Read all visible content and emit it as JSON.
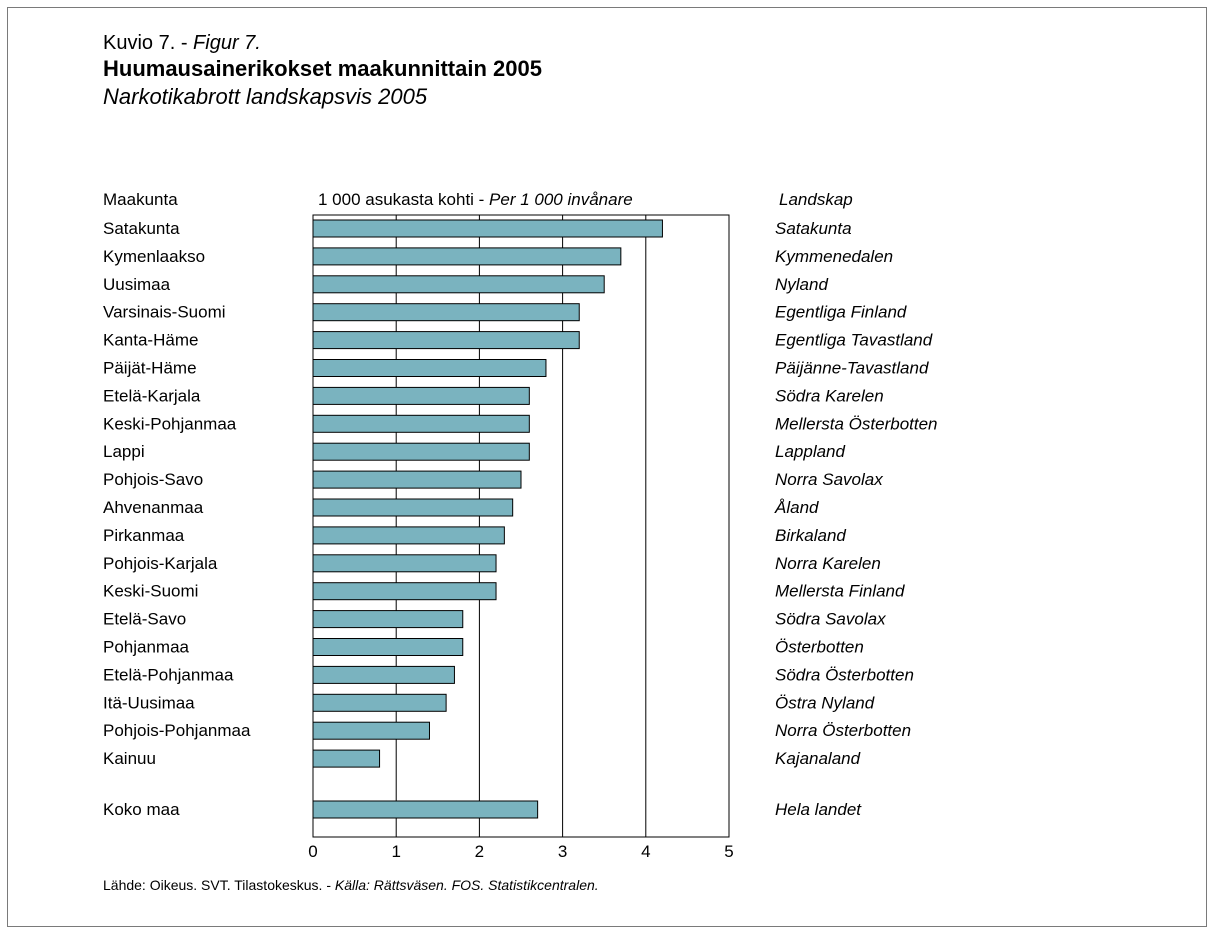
{
  "figure": {
    "label_fi": "Kuvio 7. - ",
    "label_sv": "Figur 7."
  },
  "title": "Huumausainerikokset maakunnittain 2005",
  "subtitle": "Narkotikabrott landskapsvis 2005",
  "column_headers": {
    "left": "Maakunta",
    "middle_fi": "1 000 asukasta kohti - ",
    "middle_sv": "Per 1 000 invånare",
    "right": "Landskap"
  },
  "source": {
    "fi": "Lähde: Oikeus. SVT. Tilastokeskus. - ",
    "sv": "Källa: Rättsväsen. FOS. Statistikcentralen."
  },
  "colors": {
    "bar_fill": "#7ab3bf",
    "bar_stroke": "#000000",
    "gridline": "#000000"
  },
  "chart_data": {
    "type": "bar",
    "orientation": "horizontal",
    "xlim": [
      0,
      5
    ],
    "xticks": [
      0,
      1,
      2,
      3,
      4,
      5
    ],
    "grid": true,
    "categories": [
      "Satakunta",
      "Kymenlaakso",
      "Uusimaa",
      "Varsinais-Suomi",
      "Kanta-Häme",
      "Päijät-Häme",
      "Etelä-Karjala",
      "Keski-Pohjanmaa",
      "Lappi",
      "Pohjois-Savo",
      "Ahvenanmaa",
      "Pirkanmaa",
      "Pohjois-Karjala",
      "Keski-Suomi",
      "Etelä-Savo",
      "Pohjanmaa",
      "Etelä-Pohjanmaa",
      "Itä-Uusimaa",
      "Pohjois-Pohjanmaa",
      "Kainuu"
    ],
    "categories_sv": [
      "Satakunta",
      "Kymmenedalen",
      "Nyland",
      "Egentliga Finland",
      "Egentliga Tavastland",
      "Päijänne-Tavastland",
      "Södra Karelen",
      "Mellersta Österbotten",
      "Lappland",
      "Norra Savolax",
      "Åland",
      "Birkaland",
      "Norra Karelen",
      "Mellersta Finland",
      "Södra Savolax",
      "Österbotten",
      "Södra Österbotten",
      "Östra Nyland",
      "Norra Österbotten",
      "Kajanaland"
    ],
    "values": [
      4.2,
      3.7,
      3.5,
      3.2,
      3.2,
      2.8,
      2.6,
      2.6,
      2.6,
      2.5,
      2.4,
      2.3,
      2.2,
      2.2,
      1.8,
      1.8,
      1.7,
      1.6,
      1.4,
      0.8
    ],
    "total": {
      "label": "Koko maa",
      "label_sv": "Hela landet",
      "value": 2.7
    }
  }
}
